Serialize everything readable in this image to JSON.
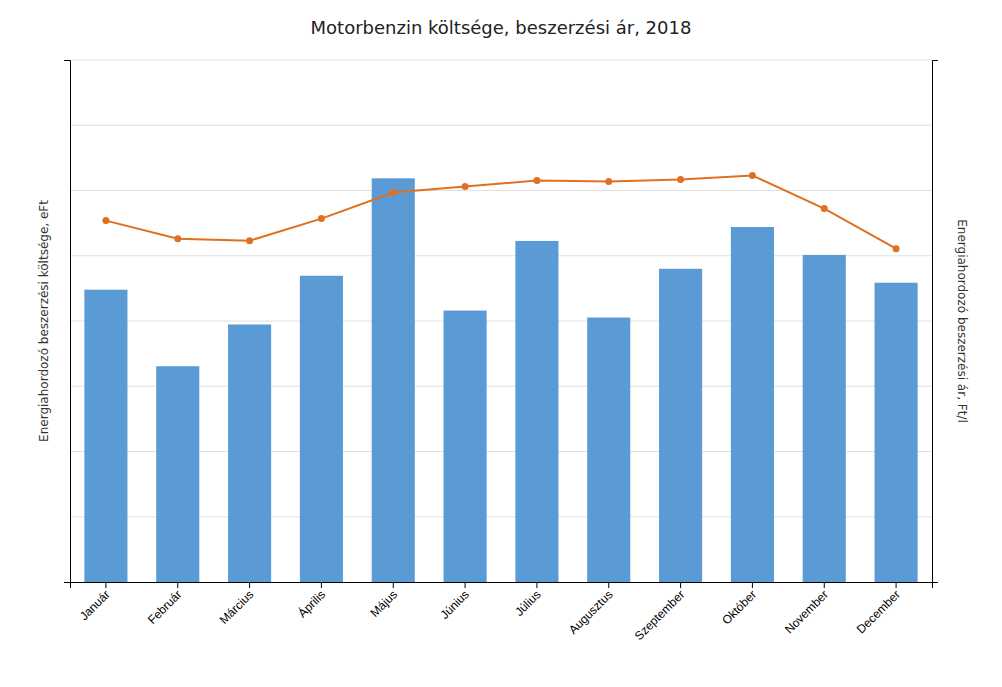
{
  "chart_data": {
    "type": "bar",
    "title": "Motorbenzin költsége, beszerzési ár, 2018",
    "categories": [
      "Január",
      "Február",
      "Március",
      "Április",
      "Május",
      "Június",
      "Július",
      "Augusztus",
      "Szeptember",
      "Október",
      "November",
      "December"
    ],
    "series": [
      {
        "type": "bar",
        "color": "#5B9BD5",
        "values": [
          4200,
          3100,
          3700,
          4400,
          5800,
          3900,
          4900,
          3800,
          4500,
          5100,
          4700,
          4300
        ]
      },
      {
        "type": "line",
        "color": "#E07020",
        "marker": "circle",
        "line_style": "solid",
        "axis": "y2",
        "values": [
          360,
          342,
          340,
          362,
          388,
          394,
          400,
          399,
          401,
          405,
          372,
          332
        ]
      }
    ],
    "ylabel": "Energiahordozó beszerzési költsége, eFt",
    "y2label": "Energiahordozó beszerzési ár, Ft/l",
    "ylim": [
      0,
      7500
    ],
    "yticks": [
      937.5,
      1875,
      2812.5,
      3750,
      4687.5,
      5625,
      6562.5,
      7500
    ],
    "y2lim": [
      0,
      520
    ],
    "grid": true,
    "tick_labels": "x"
  }
}
